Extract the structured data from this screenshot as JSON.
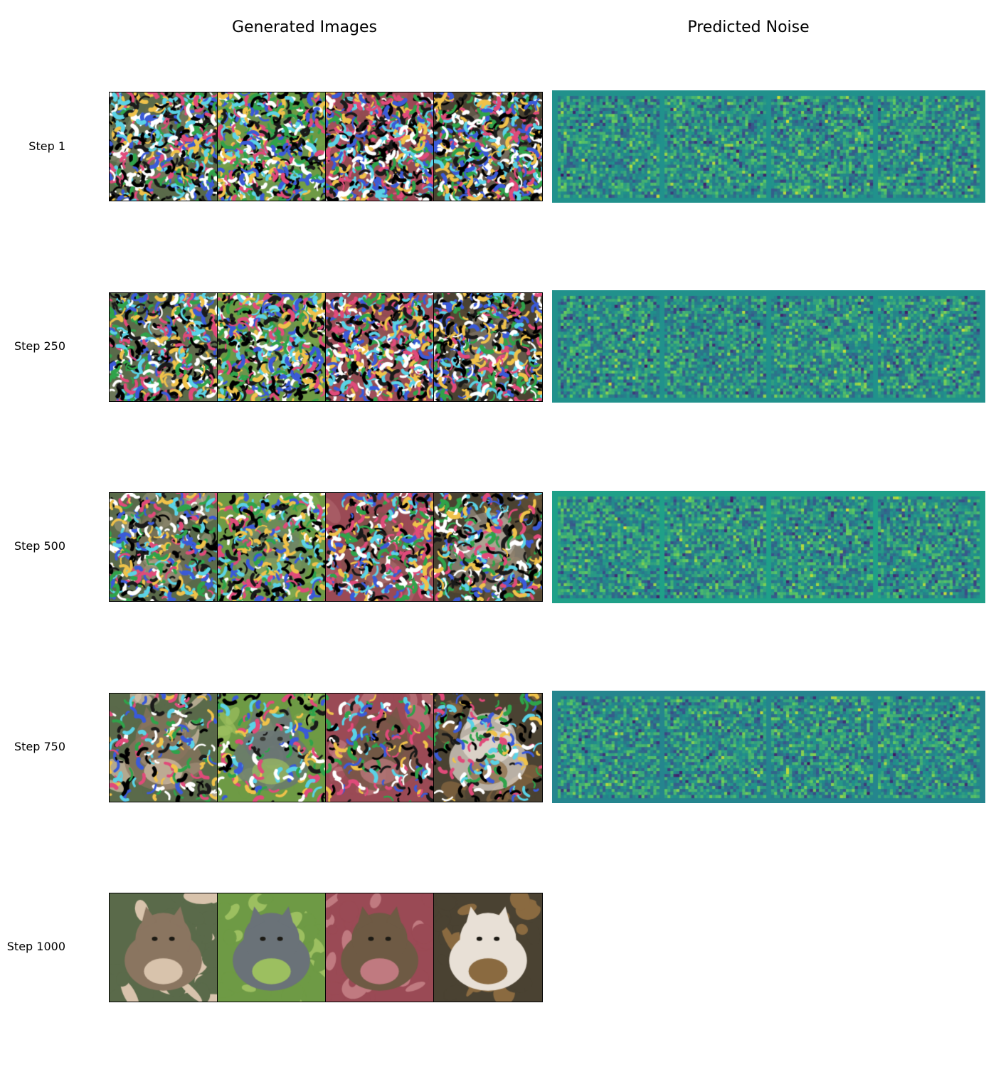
{
  "headers": {
    "generated": "Generated Images",
    "noise": "Predicted Noise"
  },
  "rows": [
    {
      "label": "Step 1",
      "stage": 0,
      "noise_bg": "#21918c",
      "has_noise": true
    },
    {
      "label": "Step 250",
      "stage": 0.1,
      "noise_bg": "#21918c",
      "has_noise": true
    },
    {
      "label": "Step 500",
      "stage": 0.35,
      "noise_bg": "#1fa088",
      "has_noise": true
    },
    {
      "label": "Step 750",
      "stage": 0.7,
      "noise_bg": "#25858e",
      "has_noise": true
    },
    {
      "label": "Step 1000",
      "stage": 1,
      "noise_bg": null,
      "has_noise": false
    }
  ],
  "samples": [
    {
      "subject": "tabby-cat-face",
      "bg": "#5a6a4a",
      "subject_color": "#8a7560",
      "accent": "#d8c3ac"
    },
    {
      "subject": "grey-cat-in-grass",
      "bg": "#6e9a45",
      "subject_color": "#6a7278",
      "accent": "#9cbf60"
    },
    {
      "subject": "tabby-cat-on-red",
      "bg": "#9a4a55",
      "subject_color": "#6e5a44",
      "accent": "#c07a80"
    },
    {
      "subject": "calico-cats-in-leaves",
      "bg": "#4a4232",
      "subject_color": "#e8e0d6",
      "accent": "#8a6a40"
    }
  ],
  "colormap": [
    "#440154",
    "#3b528b",
    "#21918c",
    "#5ec962",
    "#fde725"
  ]
}
